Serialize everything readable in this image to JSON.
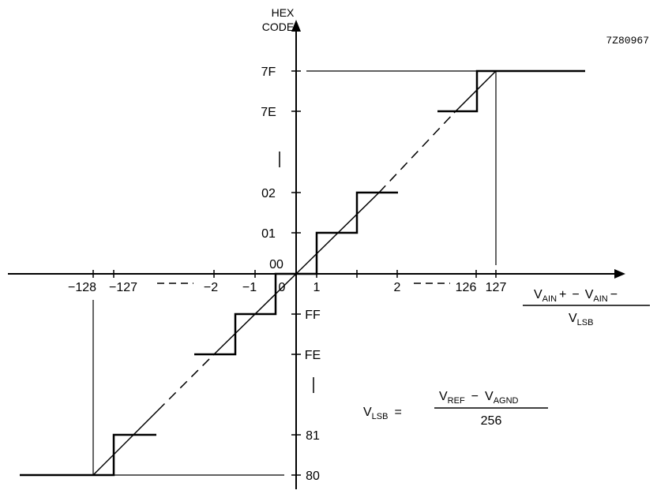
{
  "figure_id": "7Z80967",
  "y_axis": {
    "title_line1": "HEX",
    "title_line2": "CODE",
    "ticks": [
      "7F",
      "7E",
      "02",
      "01",
      "00",
      "FF",
      "FE",
      "81",
      "80"
    ]
  },
  "x_axis": {
    "ticks": [
      "−128",
      "−127",
      "−2",
      "−1",
      "0",
      "1",
      "2",
      "126",
      "127"
    ],
    "label": {
      "num_v1": "V",
      "num_sub1": "AIN",
      "num_sign1": "+",
      "num_minus": "−",
      "num_v2": "V",
      "num_sub2": "AIN",
      "num_sign2": "−",
      "den_v": "V",
      "den_sub": "LSB"
    }
  },
  "formula": {
    "lhs_v": "V",
    "lhs_sub": "LSB",
    "equals": "=",
    "num_v1": "V",
    "num_sub1": "REF",
    "num_minus": "−",
    "num_v2": "V",
    "num_sub2": "AGND",
    "denominator": "256"
  }
}
